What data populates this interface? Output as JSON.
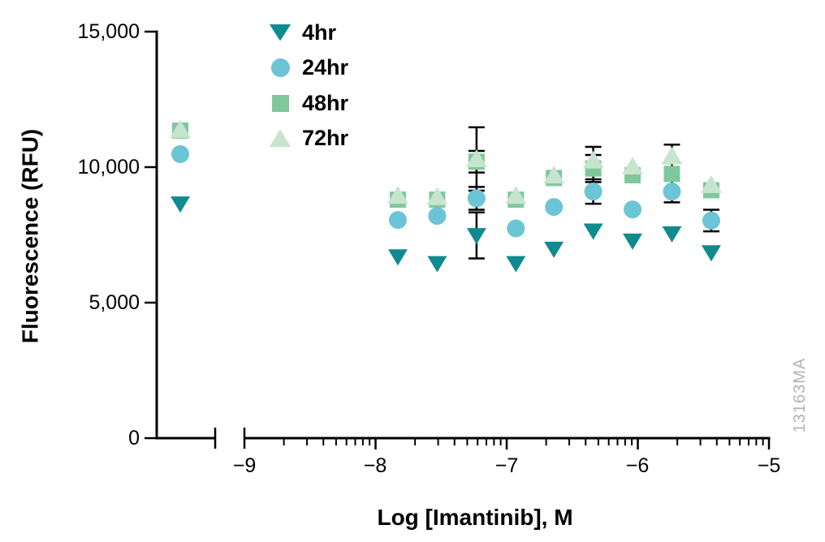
{
  "figure": {
    "watermark": "13163MA"
  },
  "chart_data": {
    "type": "scatter",
    "title": "",
    "xlabel": "Log [Imantinib], M",
    "ylabel": "Fluorescence (RFU)",
    "x_scale": "log10, broken axis; leftmost cluster is untreated control plotted left of the axis break",
    "grid": false,
    "legend_position": "top-left inside plot",
    "ylim": [
      0,
      15000
    ],
    "xlim_log": [
      -9,
      -5
    ],
    "y_ticks": {
      "values": [
        15000,
        10000,
        5000,
        0
      ],
      "labels": [
        "15,000",
        "10,000",
        "5,000",
        "0"
      ]
    },
    "x_ticks": {
      "major": [
        -9,
        -8,
        -7,
        -6,
        -5
      ],
      "labels": [
        "−9",
        "−8",
        "−7",
        "−6",
        "−5"
      ]
    },
    "log_x": [
      -7.83,
      -7.53,
      -7.23,
      -6.93,
      -6.64,
      -6.34,
      -6.04,
      -5.74,
      -5.44
    ],
    "series": [
      {
        "name": "4hr",
        "marker": "triangle-down",
        "color": "#0f8b8f",
        "control": 8650,
        "values": [
          6700,
          6450,
          7480,
          6450,
          6980,
          7650,
          7280,
          7550,
          6850
        ],
        "err": [
          0,
          0,
          850,
          0,
          0,
          0,
          0,
          0,
          0
        ]
      },
      {
        "name": "24hr",
        "marker": "circle",
        "color": "#6cc5d4",
        "control": 10480,
        "values": [
          8050,
          8200,
          8850,
          7740,
          8530,
          9100,
          8440,
          9100,
          8030
        ],
        "err": [
          0,
          0,
          420,
          0,
          0,
          450,
          0,
          400,
          400
        ]
      },
      {
        "name": "48hr",
        "marker": "square",
        "color": "#7fc89b",
        "control": 11350,
        "values": [
          8800,
          8800,
          10200,
          8800,
          9600,
          9950,
          9700,
          9750,
          9150
        ],
        "err": [
          0,
          0,
          400,
          0,
          0,
          500,
          0,
          0,
          0
        ]
      },
      {
        "name": "72hr",
        "marker": "triangle-up",
        "color": "#c7e4cf",
        "control": 11380,
        "values": [
          8950,
          8900,
          10300,
          8950,
          9700,
          10250,
          10030,
          10400,
          9340
        ],
        "err": [
          0,
          0,
          1170,
          0,
          0,
          500,
          0,
          430,
          0
        ]
      }
    ]
  }
}
